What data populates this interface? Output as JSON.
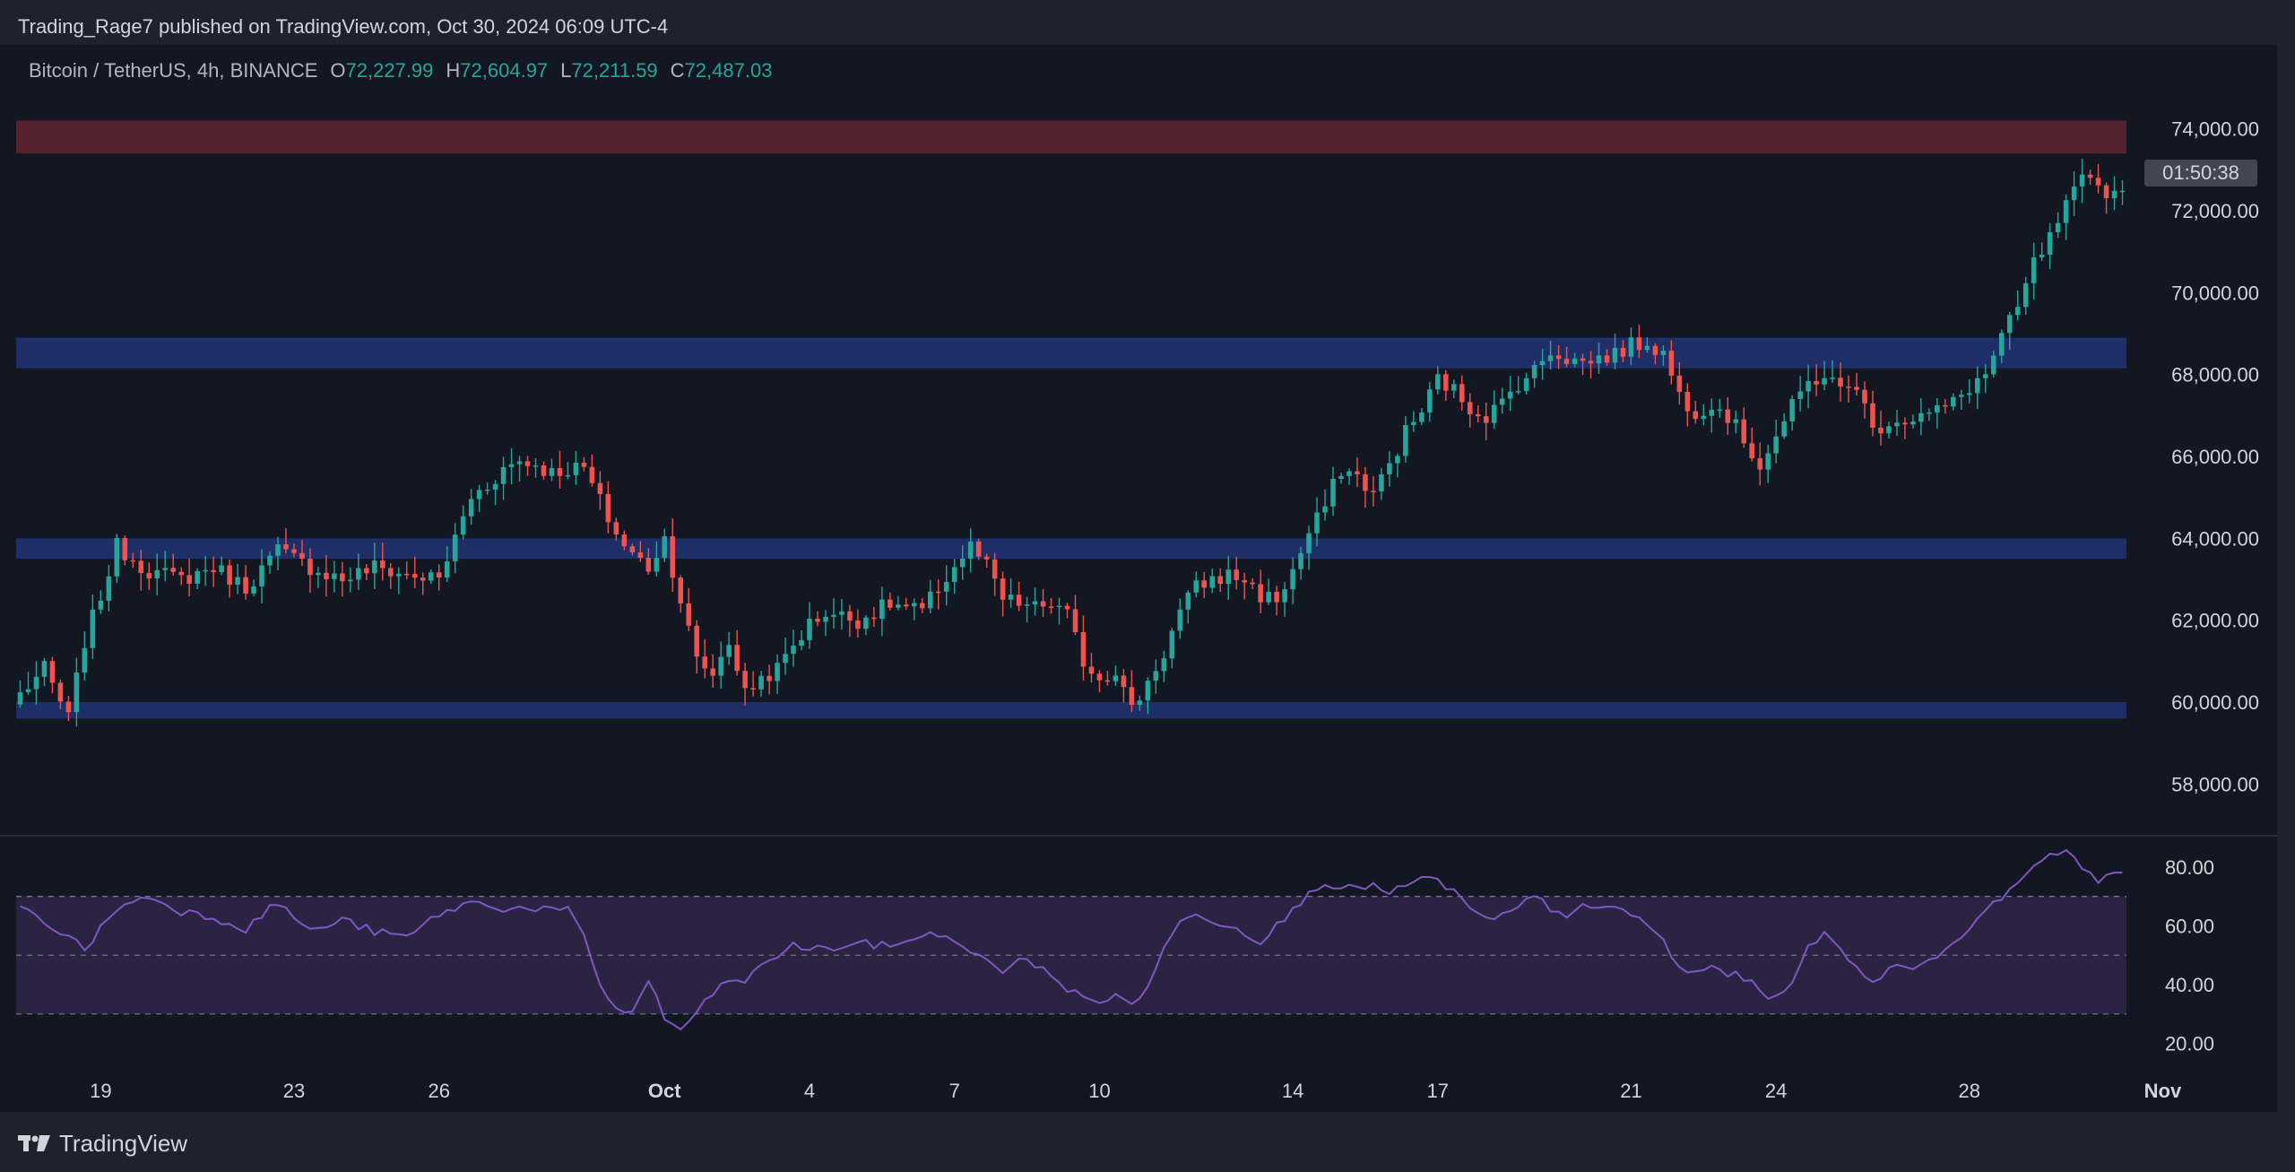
{
  "header": {
    "published": "Trading_Rage7 published on TradingView.com, Oct 30, 2024 06:09 UTC-4"
  },
  "symbol": {
    "name": "Bitcoin / TetherUS, 4h, BINANCE",
    "o_label": "O",
    "o": "72,227.99",
    "h_label": "H",
    "h": "72,604.97",
    "l_label": "L",
    "l": "72,211.59",
    "c_label": "C",
    "c": "72,487.03"
  },
  "countdown": "01:50:38",
  "footer": {
    "brand": "TradingView"
  },
  "colors": {
    "up": "#26a69a",
    "down": "#ef5350",
    "resistance_zone": "#5a2230",
    "support_zone": "#1f2f6b",
    "rsi_line": "#7e57c2",
    "rsi_band": "#2a2342"
  },
  "chart_data": [
    {
      "type": "candlestick",
      "title": "Bitcoin / TetherUS, 4h, BINANCE",
      "ylim": [
        57000,
        75000
      ],
      "y_ticks": [
        "74,000.00",
        "72,000.00",
        "70,000.00",
        "68,000.00",
        "66,000.00",
        "64,000.00",
        "62,000.00",
        "60,000.00",
        "58,000.00"
      ],
      "y_tick_values": [
        74000,
        72000,
        70000,
        68000,
        66000,
        64000,
        62000,
        60000,
        58000
      ],
      "x_ticks": [
        "19",
        "23",
        "26",
        "Oct",
        "4",
        "7",
        "10",
        "14",
        "17",
        "21",
        "24",
        "28",
        "Nov"
      ],
      "x_tick_bars": [
        10,
        34,
        52,
        80,
        98,
        116,
        134,
        158,
        176,
        200,
        218,
        242,
        266
      ],
      "zones": [
        {
          "kind": "resistance",
          "low": 73400,
          "high": 74200
        },
        {
          "kind": "support",
          "low": 68150,
          "high": 68900
        },
        {
          "kind": "support",
          "low": 63500,
          "high": 64000
        },
        {
          "kind": "support",
          "low": 59600,
          "high": 60000
        }
      ],
      "close_path": [
        [
          0,
          60200
        ],
        [
          3,
          60800
        ],
        [
          6,
          59600
        ],
        [
          8,
          61500
        ],
        [
          10,
          62600
        ],
        [
          12,
          63800
        ],
        [
          16,
          63200
        ],
        [
          20,
          63000
        ],
        [
          24,
          63300
        ],
        [
          28,
          62800
        ],
        [
          32,
          63700
        ],
        [
          36,
          63300
        ],
        [
          40,
          63000
        ],
        [
          44,
          63300
        ],
        [
          48,
          63100
        ],
        [
          52,
          63000
        ],
        [
          54,
          64000
        ],
        [
          56,
          65000
        ],
        [
          58,
          65300
        ],
        [
          60,
          65700
        ],
        [
          62,
          65900
        ],
        [
          64,
          65800
        ],
        [
          66,
          65600
        ],
        [
          68,
          65700
        ],
        [
          70,
          65700
        ],
        [
          72,
          64900
        ],
        [
          74,
          64100
        ],
        [
          76,
          63600
        ],
        [
          78,
          63300
        ],
        [
          80,
          64000
        ],
        [
          82,
          62500
        ],
        [
          84,
          61000
        ],
        [
          86,
          60700
        ],
        [
          88,
          61500
        ],
        [
          90,
          60200
        ],
        [
          92,
          60600
        ],
        [
          94,
          60800
        ],
        [
          96,
          61400
        ],
        [
          98,
          61900
        ],
        [
          100,
          62200
        ],
        [
          104,
          62000
        ],
        [
          108,
          62400
        ],
        [
          112,
          62200
        ],
        [
          114,
          62800
        ],
        [
          116,
          63300
        ],
        [
          118,
          63800
        ],
        [
          120,
          63300
        ],
        [
          122,
          62500
        ],
        [
          126,
          62300
        ],
        [
          128,
          62400
        ],
        [
          130,
          62100
        ],
        [
          132,
          61000
        ],
        [
          134,
          60600
        ],
        [
          136,
          60800
        ],
        [
          138,
          59800
        ],
        [
          140,
          60500
        ],
        [
          142,
          61200
        ],
        [
          144,
          62200
        ],
        [
          146,
          62800
        ],
        [
          148,
          63000
        ],
        [
          150,
          63100
        ],
        [
          152,
          63000
        ],
        [
          154,
          62600
        ],
        [
          156,
          62500
        ],
        [
          158,
          63200
        ],
        [
          160,
          64100
        ],
        [
          162,
          64800
        ],
        [
          164,
          65700
        ],
        [
          166,
          65500
        ],
        [
          168,
          65100
        ],
        [
          170,
          65800
        ],
        [
          172,
          66600
        ],
        [
          174,
          67100
        ],
        [
          176,
          67900
        ],
        [
          178,
          67600
        ],
        [
          180,
          67200
        ],
        [
          182,
          67000
        ],
        [
          184,
          67300
        ],
        [
          186,
          67800
        ],
        [
          188,
          68100
        ],
        [
          190,
          68600
        ],
        [
          192,
          68400
        ],
        [
          194,
          68300
        ],
        [
          196,
          68400
        ],
        [
          198,
          68500
        ],
        [
          200,
          68700
        ],
        [
          202,
          68800
        ],
        [
          204,
          68500
        ],
        [
          206,
          67500
        ],
        [
          208,
          67100
        ],
        [
          210,
          67300
        ],
        [
          212,
          67000
        ],
        [
          214,
          66400
        ],
        [
          216,
          65800
        ],
        [
          218,
          66500
        ],
        [
          220,
          67200
        ],
        [
          222,
          67800
        ],
        [
          224,
          68000
        ],
        [
          226,
          67600
        ],
        [
          228,
          67800
        ],
        [
          230,
          66600
        ],
        [
          232,
          66900
        ],
        [
          234,
          66900
        ],
        [
          236,
          67000
        ],
        [
          238,
          67100
        ],
        [
          240,
          67300
        ],
        [
          242,
          67700
        ],
        [
          244,
          68000
        ],
        [
          246,
          68900
        ],
        [
          248,
          69600
        ],
        [
          250,
          70700
        ],
        [
          252,
          71300
        ],
        [
          254,
          72100
        ],
        [
          256,
          72700
        ],
        [
          258,
          72600
        ],
        [
          260,
          72400
        ],
        [
          261,
          72487
        ]
      ],
      "rsi": {
        "ylim": [
          15,
          90
        ],
        "y_ticks": [
          "80.00",
          "60.00",
          "40.00",
          "20.00"
        ],
        "y_tick_values": [
          80,
          60,
          40,
          20
        ],
        "levels": [
          30,
          50,
          70
        ],
        "path": [
          [
            0,
            66
          ],
          [
            4,
            60
          ],
          [
            8,
            52
          ],
          [
            12,
            66
          ],
          [
            16,
            70
          ],
          [
            20,
            65
          ],
          [
            24,
            63
          ],
          [
            28,
            59
          ],
          [
            32,
            68
          ],
          [
            36,
            58
          ],
          [
            40,
            62
          ],
          [
            44,
            58
          ],
          [
            48,
            56
          ],
          [
            52,
            64
          ],
          [
            56,
            68
          ],
          [
            60,
            66
          ],
          [
            64,
            66
          ],
          [
            68,
            65
          ],
          [
            70,
            56
          ],
          [
            72,
            40
          ],
          [
            74,
            32
          ],
          [
            76,
            30
          ],
          [
            78,
            42
          ],
          [
            80,
            28
          ],
          [
            82,
            25
          ],
          [
            84,
            30
          ],
          [
            86,
            37
          ],
          [
            88,
            42
          ],
          [
            90,
            40
          ],
          [
            92,
            47
          ],
          [
            94,
            50
          ],
          [
            96,
            53
          ],
          [
            100,
            52
          ],
          [
            104,
            54
          ],
          [
            108,
            53
          ],
          [
            112,
            57
          ],
          [
            116,
            56
          ],
          [
            118,
            50
          ],
          [
            120,
            48
          ],
          [
            122,
            45
          ],
          [
            124,
            48
          ],
          [
            126,
            47
          ],
          [
            128,
            44
          ],
          [
            130,
            38
          ],
          [
            132,
            36
          ],
          [
            134,
            33
          ],
          [
            136,
            38
          ],
          [
            138,
            32
          ],
          [
            140,
            40
          ],
          [
            142,
            52
          ],
          [
            144,
            61
          ],
          [
            146,
            65
          ],
          [
            148,
            62
          ],
          [
            150,
            60
          ],
          [
            152,
            58
          ],
          [
            154,
            55
          ],
          [
            156,
            60
          ],
          [
            158,
            65
          ],
          [
            160,
            72
          ],
          [
            162,
            75
          ],
          [
            164,
            72
          ],
          [
            166,
            73
          ],
          [
            168,
            74
          ],
          [
            170,
            70
          ],
          [
            172,
            74
          ],
          [
            174,
            76
          ],
          [
            176,
            75
          ],
          [
            178,
            72
          ],
          [
            180,
            65
          ],
          [
            182,
            62
          ],
          [
            184,
            63
          ],
          [
            186,
            66
          ],
          [
            188,
            70
          ],
          [
            190,
            66
          ],
          [
            192,
            64
          ],
          [
            194,
            66
          ],
          [
            196,
            65
          ],
          [
            198,
            67
          ],
          [
            200,
            64
          ],
          [
            202,
            60
          ],
          [
            204,
            55
          ],
          [
            206,
            45
          ],
          [
            208,
            44
          ],
          [
            210,
            46
          ],
          [
            212,
            44
          ],
          [
            214,
            42
          ],
          [
            216,
            38
          ],
          [
            218,
            35
          ],
          [
            220,
            42
          ],
          [
            222,
            52
          ],
          [
            224,
            57
          ],
          [
            226,
            53
          ],
          [
            228,
            45
          ],
          [
            230,
            42
          ],
          [
            232,
            45
          ],
          [
            234,
            46
          ],
          [
            236,
            47
          ],
          [
            238,
            50
          ],
          [
            240,
            54
          ],
          [
            242,
            60
          ],
          [
            244,
            64
          ],
          [
            246,
            70
          ],
          [
            248,
            76
          ],
          [
            250,
            79
          ],
          [
            252,
            85
          ],
          [
            254,
            86
          ],
          [
            256,
            78
          ],
          [
            258,
            76
          ],
          [
            260,
            78
          ],
          [
            261,
            79
          ]
        ]
      }
    }
  ]
}
